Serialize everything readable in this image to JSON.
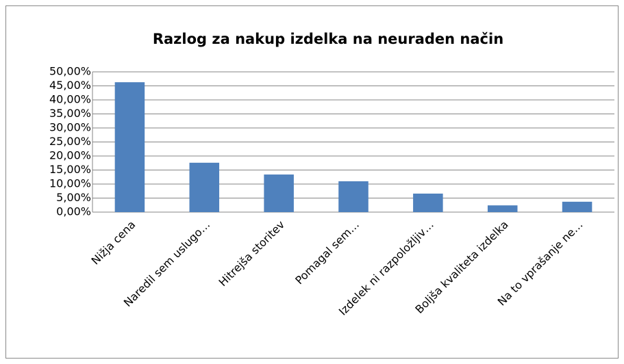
{
  "chart_data": {
    "type": "bar",
    "title": "Razlog za nakup izdelka na neuraden način",
    "categories": [
      "Nižja cena",
      "Naredil sem uslugo…",
      "Hitrejša storitev",
      "Pomagal sem…",
      "Izdelek ni razpoložljiv…",
      "Boljša kvaliteta izdelka",
      "Na to vprašanje ne…"
    ],
    "values": [
      46.3,
      17.6,
      13.4,
      11.0,
      6.6,
      2.4,
      3.7
    ],
    "color": "#4f81bd",
    "ylim": [
      0,
      50
    ],
    "yticks": [
      {
        "value": 0,
        "label": "0,00%"
      },
      {
        "value": 5,
        "label": "5,00%"
      },
      {
        "value": 10,
        "label": "10,00%"
      },
      {
        "value": 15,
        "label": "15,00%"
      },
      {
        "value": 20,
        "label": "20,00%"
      },
      {
        "value": 25,
        "label": "25,00%"
      },
      {
        "value": 30,
        "label": "30,00%"
      },
      {
        "value": 35,
        "label": "35,00%"
      },
      {
        "value": 40,
        "label": "40,00%"
      },
      {
        "value": 45,
        "label": "45,00%"
      },
      {
        "value": 50,
        "label": "50,00%"
      }
    ],
    "grid": true
  }
}
